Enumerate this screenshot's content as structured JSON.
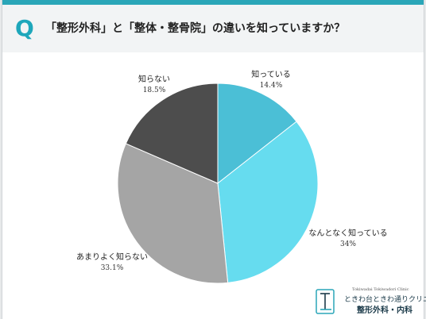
{
  "header": {
    "q_label": "Q",
    "question": "「整形外科」と「整体・整骨院」の違いを知っていますか？"
  },
  "chart_data": {
    "type": "pie",
    "title": "",
    "start_angle_deg": 0,
    "direction": "clockwise",
    "slices": [
      {
        "label": "知っている",
        "value": 14.4,
        "value_label": "14.4%",
        "color": "#4bbfd6"
      },
      {
        "label": "なんとなく知っている",
        "value": 34,
        "value_label": "34%",
        "color": "#66dcef"
      },
      {
        "label": "あまりよく知らない",
        "value": 33.1,
        "value_label": "33.1%",
        "color": "#a5a5a5"
      },
      {
        "label": "知らない",
        "value": 18.5,
        "value_label": "18.5%",
        "color": "#4d4d4d"
      }
    ],
    "legend": "none"
  },
  "logo": {
    "subtitle": "Tokiwadai Tokiwadori Clinic",
    "name": "ときわ台ときわ通りクリニック",
    "department": "整形外科・内科"
  },
  "colors": {
    "accent": "#2aa6b8",
    "header_bg": "#f2f4f5",
    "page_bg": "#e7e9ea"
  }
}
